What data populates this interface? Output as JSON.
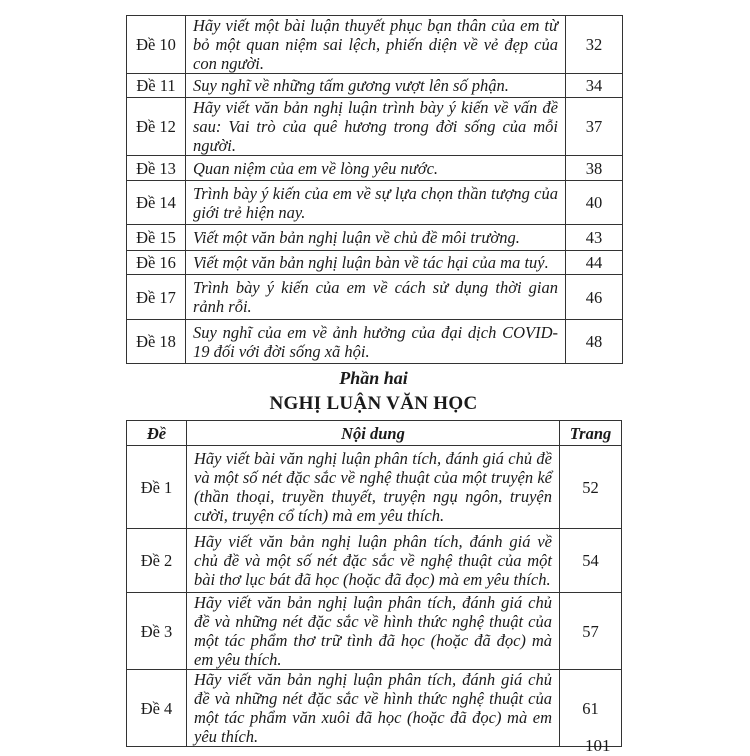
{
  "part1_rows": [
    {
      "de": "Đề 10",
      "content": "Hãy viết một bài luận thuyết phục bạn thân của em từ bỏ một quan niệm sai lệch, phiến diện về vẻ đẹp của con người.",
      "page": "32"
    },
    {
      "de": "Đề 11",
      "content": "Suy nghĩ về những tấm gương vượt lên số phận.",
      "page": "34"
    },
    {
      "de": "Đề 12",
      "content": "Hãy viết văn bản nghị luận trình bày ý kiến về vấn đề sau: Vai trò của quê hương trong đời sống của mỗi người.",
      "page": "37"
    },
    {
      "de": "Đề 13",
      "content": "Quan niệm của em về lòng yêu nước.",
      "page": "38"
    },
    {
      "de": "Đề 14",
      "content": "Trình bày ý kiến của em về sự lựa chọn thần tượng của giới trẻ hiện nay.",
      "page": "40"
    },
    {
      "de": "Đề 15",
      "content": "Viết một văn bản nghị luận về chủ đề môi trường.",
      "page": "43"
    },
    {
      "de": "Đề 16",
      "content": "Viết một văn bản nghị luận bàn về tác hại của ma tuý.",
      "page": "44"
    },
    {
      "de": "Đề 17",
      "content": "Trình bày ý kiến của em về cách sử dụng thời gian rảnh rỗi.",
      "page": "46"
    },
    {
      "de": "Đề 18",
      "content": "Suy nghĩ của em về ảnh hưởng của đại dịch COVID-19 đối với đời sống xã hội.",
      "page": "48"
    }
  ],
  "part2": {
    "part_label": "Phần hai",
    "section_title": "NGHỊ LUẬN VĂN HỌC",
    "headers": {
      "de": "Đề",
      "content": "Nội dung",
      "page": "Trang"
    },
    "rows": [
      {
        "de": "Đề 1",
        "content": "Hãy viết bài văn nghị luận phân tích, đánh giá chủ đề và một số nét đặc sắc về nghệ thuật của một truyện kể (thần thoại, truyền thuyết, truyện ngụ ngôn, truyện cười, truyện cổ tích) mà em yêu thích.",
        "page": "52"
      },
      {
        "de": "Đề 2",
        "content": "Hãy viết văn bản nghị luận phân tích, đánh giá về chủ đề và một số nét đặc sắc về nghệ thuật của một bài thơ lục bát đã học (hoặc đã đọc) mà em yêu thích.",
        "page": "54"
      },
      {
        "de": "Đề 3",
        "content": "Hãy viết văn bản nghị luận phân tích, đánh giá chủ đề và những nét đặc sắc về hình thức nghệ thuật của một tác phẩm thơ trữ tình đã học (hoặc đã đọc) mà em yêu thích.",
        "page": "57"
      },
      {
        "de": "Đề 4",
        "content": "Hãy viết văn bản nghị luận phân tích, đánh giá chủ đề và những nét đặc sắc về hình thức nghệ thuật của một tác phẩm văn xuôi đã học (hoặc đã đọc) mà em yêu thích.",
        "page": "61"
      }
    ]
  },
  "page_number": "101"
}
